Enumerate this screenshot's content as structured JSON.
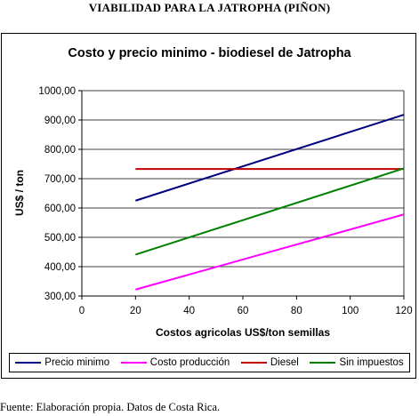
{
  "page": {
    "heading": "VIABILIDAD PARA LA JATROPHA (PIÑON)",
    "source_note": "Fuente: Elaboración propia. Datos de Costa Rica."
  },
  "chart_data": {
    "type": "line",
    "title": "Costo y precio minimo - biodiesel de Jatropha",
    "xlabel": "Costos agricolas  US$/ton semillas",
    "ylabel": "US$ / ton",
    "xlim": [
      0,
      120
    ],
    "ylim": [
      300,
      1000
    ],
    "x_ticks": [
      0,
      20,
      40,
      60,
      80,
      100,
      120
    ],
    "x_tick_labels": [
      "0",
      "20",
      "40",
      "60",
      "80",
      "100",
      "120"
    ],
    "y_ticks": [
      300,
      400,
      500,
      600,
      700,
      800,
      900,
      1000
    ],
    "y_tick_labels": [
      "300,00",
      "400,00",
      "500,00",
      "600,00",
      "700,00",
      "800,00",
      "900,00",
      "1000,00"
    ],
    "grid": "horizontal",
    "legend_position": "bottom",
    "series": [
      {
        "name": "Precio minimo",
        "color": "#000080",
        "x": [
          20,
          120
        ],
        "y": [
          625,
          918
        ]
      },
      {
        "name": "Costo producción",
        "color": "#ff00ff",
        "x": [
          20,
          120
        ],
        "y": [
          322,
          578
        ]
      },
      {
        "name": "Diesel",
        "color": "#c00000",
        "x": [
          20,
          120
        ],
        "y": [
          733,
          733
        ]
      },
      {
        "name": "Sin impuestos",
        "color": "#008000",
        "x": [
          20,
          120
        ],
        "y": [
          441,
          735
        ]
      }
    ]
  }
}
